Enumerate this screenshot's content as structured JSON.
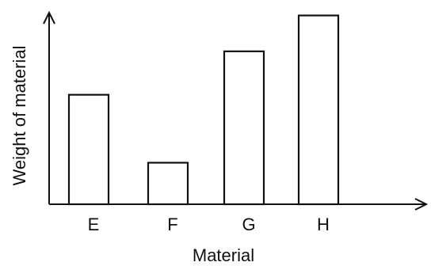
{
  "chart_data": {
    "type": "bar",
    "title": "",
    "xlabel": "Material",
    "ylabel": "Weight of material",
    "categories": [
      "E",
      "F",
      "G",
      "H"
    ],
    "values": [
      58,
      22,
      81,
      100
    ],
    "ylim": [
      0,
      104
    ],
    "y_ticks_shown": false,
    "grid": false,
    "legend": "none",
    "bar_fill": "#ffffff",
    "bar_stroke": "#111111",
    "axis_color": "#111111"
  }
}
